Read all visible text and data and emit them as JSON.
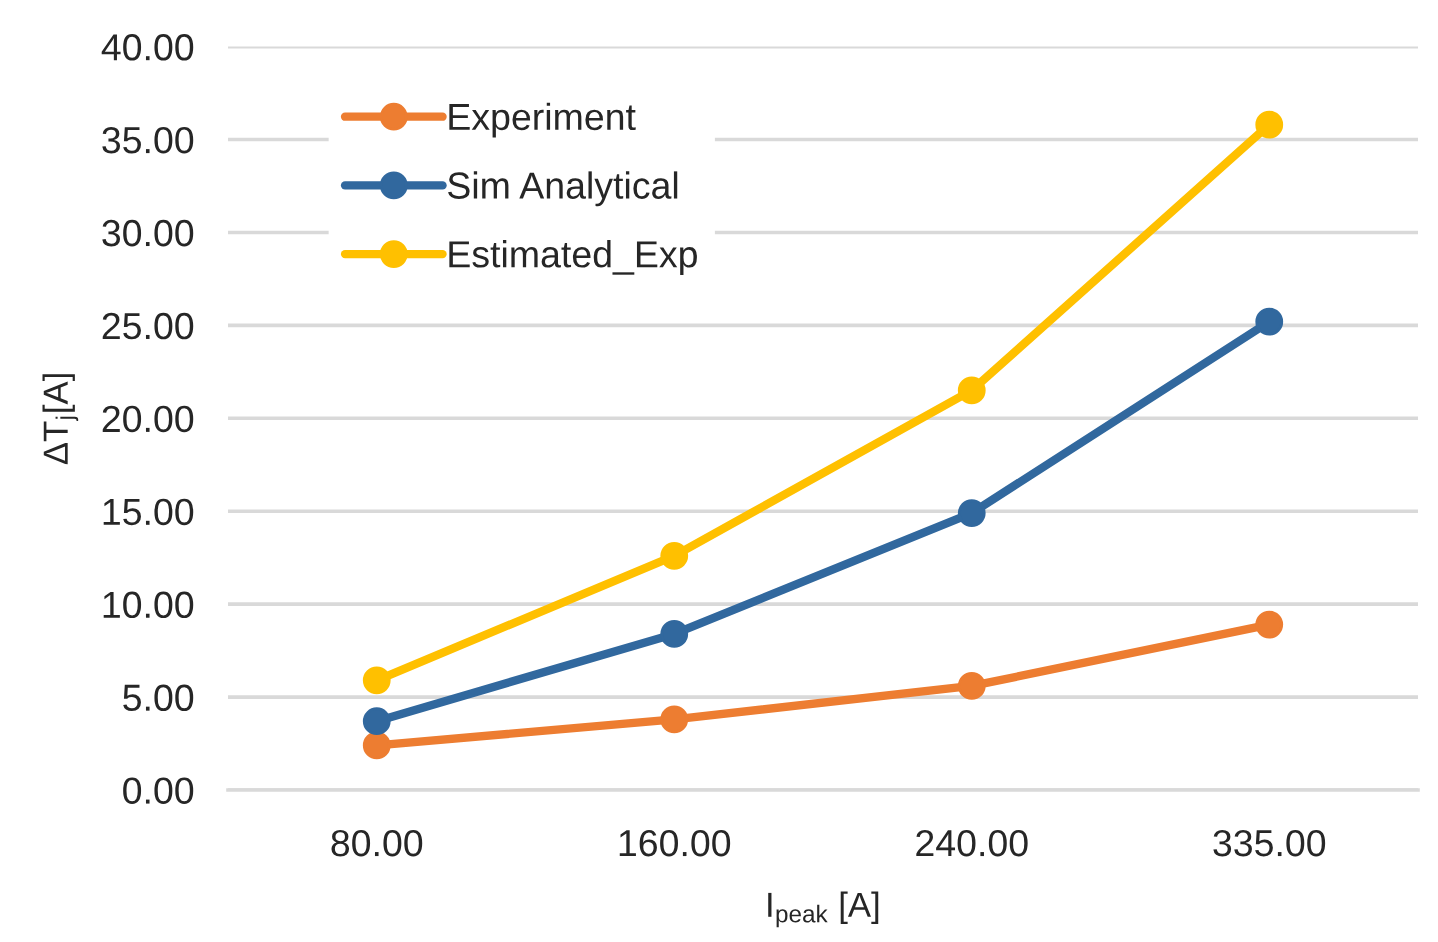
{
  "chart_data": {
    "type": "line",
    "xlabel": "I$_{peak}$ [A]",
    "ylabel": "ΔT$_{j}$[A]",
    "categories": [
      "80.00",
      "160.00",
      "240.00",
      "335.00"
    ],
    "series": [
      {
        "name": "Experiment",
        "color": "#ed7d31",
        "values": [
          2.4,
          3.8,
          5.6,
          8.9
        ]
      },
      {
        "name": "Sim Analytical",
        "color": "#31689e",
        "values": [
          3.7,
          8.4,
          14.9,
          25.2
        ]
      },
      {
        "name": "Estimated_Exp",
        "color": "#ffc000",
        "values": [
          5.9,
          12.6,
          21.5,
          35.8
        ]
      }
    ],
    "ylim": [
      0,
      40
    ],
    "yticks": [
      {
        "value": 0,
        "label": "0.00"
      },
      {
        "value": 5,
        "label": "5.00"
      },
      {
        "value": 10,
        "label": "10.00"
      },
      {
        "value": 15,
        "label": "15.00"
      },
      {
        "value": 20,
        "label": "20.00"
      },
      {
        "value": 25,
        "label": "25.00"
      },
      {
        "value": 30,
        "label": "30.00"
      },
      {
        "value": 35,
        "label": "35.00"
      },
      {
        "value": 40,
        "label": "40.00"
      }
    ],
    "grid": "y",
    "legend": "top left",
    "marker": "circle",
    "line_style": "solid"
  }
}
